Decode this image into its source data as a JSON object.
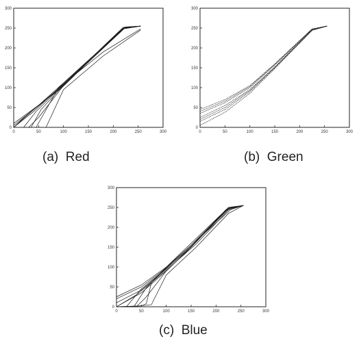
{
  "figure": {
    "captions": [
      "(a)  Red",
      "(b)  Green",
      "(c)  Blue"
    ]
  },
  "chart_data": [
    {
      "type": "line",
      "title": "",
      "xlabel": "",
      "ylabel": "",
      "xlim": [
        0,
        300
      ],
      "ylim": [
        0,
        300
      ],
      "xticks": [
        0,
        50,
        100,
        150,
        200,
        250,
        300
      ],
      "yticks": [
        0,
        50,
        100,
        150,
        200,
        250,
        300
      ],
      "grid": false,
      "line_style": "solid",
      "series": [
        {
          "x": [
            0,
            40,
            100,
            220,
            255
          ],
          "y": [
            0,
            40,
            110,
            250,
            255
          ]
        },
        {
          "x": [
            0,
            50,
            100,
            220,
            255
          ],
          "y": [
            5,
            55,
            108,
            252,
            255
          ]
        },
        {
          "x": [
            0,
            60,
            100,
            225,
            255
          ],
          "y": [
            10,
            65,
            106,
            253,
            255
          ]
        },
        {
          "x": [
            0,
            45,
            100,
            222,
            255
          ],
          "y": [
            0,
            50,
            112,
            251,
            255
          ]
        },
        {
          "x": [
            0,
            25,
            100,
            218,
            255
          ],
          "y": [
            0,
            30,
            104,
            248,
            255
          ]
        },
        {
          "x": [
            20,
            45,
            100,
            222,
            255
          ],
          "y": [
            0,
            40,
            108,
            250,
            255
          ]
        },
        {
          "x": [
            30,
            50,
            100,
            220,
            255
          ],
          "y": [
            0,
            25,
            105,
            248,
            255
          ]
        },
        {
          "x": [
            35,
            55,
            100,
            225,
            255
          ],
          "y": [
            0,
            45,
            106,
            252,
            255
          ]
        },
        {
          "x": [
            65,
            100,
            180,
            255
          ],
          "y": [
            0,
            95,
            180,
            245
          ]
        },
        {
          "x": [
            45,
            90,
            180,
            255
          ],
          "y": [
            0,
            100,
            190,
            248
          ]
        }
      ]
    },
    {
      "type": "line",
      "title": "",
      "xlabel": "",
      "ylabel": "",
      "xlim": [
        0,
        300
      ],
      "ylim": [
        0,
        300
      ],
      "xticks": [
        0,
        50,
        100,
        150,
        200,
        250,
        300
      ],
      "yticks": [
        0,
        50,
        100,
        150,
        200,
        250,
        300
      ],
      "grid": false,
      "line_style": "dotted",
      "series": [
        {
          "x": [
            0,
            50,
            100,
            150,
            225,
            255
          ],
          "y": [
            45,
            70,
            105,
            160,
            248,
            255
          ]
        },
        {
          "x": [
            0,
            50,
            100,
            150,
            225,
            255
          ],
          "y": [
            35,
            62,
            100,
            157,
            247,
            255
          ]
        },
        {
          "x": [
            0,
            50,
            100,
            150,
            225,
            255
          ],
          "y": [
            25,
            55,
            95,
            152,
            246,
            255
          ]
        },
        {
          "x": [
            0,
            50,
            100,
            150,
            225,
            255
          ],
          "y": [
            15,
            45,
            90,
            150,
            245,
            255
          ]
        },
        {
          "x": [
            0,
            50,
            100,
            150,
            225,
            255
          ],
          "y": [
            5,
            38,
            86,
            148,
            244,
            255
          ]
        },
        {
          "x": [
            0,
            50,
            100,
            150,
            225,
            255
          ],
          "y": [
            40,
            66,
            103,
            158,
            247,
            255
          ]
        },
        {
          "x": [
            0,
            50,
            100,
            150,
            225,
            255
          ],
          "y": [
            20,
            50,
            93,
            151,
            245,
            255
          ]
        }
      ]
    },
    {
      "type": "line",
      "title": "",
      "xlabel": "",
      "ylabel": "",
      "xlim": [
        0,
        300
      ],
      "ylim": [
        0,
        300
      ],
      "xticks": [
        0,
        50,
        100,
        150,
        200,
        250,
        300
      ],
      "yticks": [
        0,
        50,
        100,
        150,
        200,
        250,
        300
      ],
      "grid": false,
      "line_style": "solid",
      "series": [
        {
          "x": [
            0,
            50,
            100,
            150,
            225,
            255
          ],
          "y": [
            25,
            55,
            100,
            160,
            250,
            255
          ]
        },
        {
          "x": [
            0,
            50,
            100,
            150,
            225,
            255
          ],
          "y": [
            20,
            50,
            98,
            155,
            248,
            255
          ]
        },
        {
          "x": [
            0,
            50,
            100,
            150,
            225,
            255
          ],
          "y": [
            10,
            42,
            95,
            152,
            246,
            255
          ]
        },
        {
          "x": [
            0,
            50,
            100,
            150,
            220,
            255
          ],
          "y": [
            0,
            35,
            90,
            150,
            245,
            255
          ]
        },
        {
          "x": [
            0,
            40,
            100,
            160,
            230,
            255
          ],
          "y": [
            0,
            30,
            92,
            158,
            250,
            255
          ]
        },
        {
          "x": [
            20,
            50,
            100,
            150,
            225,
            255
          ],
          "y": [
            0,
            45,
            96,
            150,
            248,
            255
          ]
        },
        {
          "x": [
            40,
            60,
            100,
            150,
            220,
            255
          ],
          "y": [
            0,
            25,
            90,
            150,
            242,
            255
          ]
        },
        {
          "x": [
            35,
            60,
            100,
            150,
            225,
            255
          ],
          "y": [
            0,
            48,
            98,
            155,
            250,
            255
          ]
        },
        {
          "x": [
            0,
            45,
            70,
            100,
            160,
            225,
            255
          ],
          "y": [
            0,
            2,
            5,
            80,
            150,
            235,
            255
          ]
        },
        {
          "x": [
            0,
            50,
            60,
            70,
            100,
            150,
            230,
            255
          ],
          "y": [
            0,
            2,
            8,
            60,
            100,
            155,
            245,
            255
          ]
        }
      ]
    }
  ]
}
